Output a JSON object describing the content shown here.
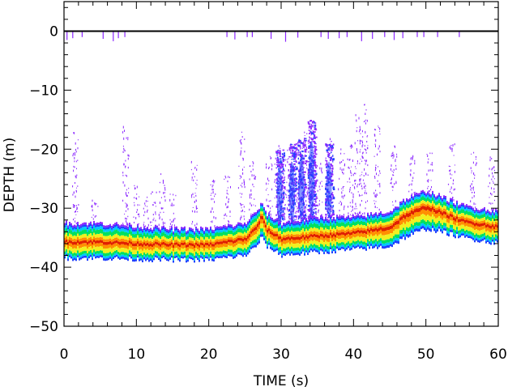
{
  "chart_data": {
    "type": "heatmap",
    "title": "",
    "xlabel": "TIME (s)",
    "ylabel": "DEPTH (m)",
    "xlim": [
      0,
      60
    ],
    "ylim": [
      -50,
      5
    ],
    "x_ticks": [
      0,
      10,
      20,
      30,
      40,
      50,
      60
    ],
    "x_tick_labels": [
      "0",
      "10",
      "20",
      "30",
      "40",
      "50",
      "60"
    ],
    "y_ticks": [
      0,
      -10,
      -20,
      -30,
      -40,
      -50
    ],
    "y_tick_labels": [
      "0",
      "−10",
      "−20",
      "−30",
      "−40",
      "−50"
    ],
    "grid": false,
    "legend": "none",
    "colormap": [
      "#8c28ff",
      "#2040ff",
      "#00c8ff",
      "#00e060",
      "#f0f020",
      "#ff9000",
      "#e02000"
    ],
    "surface_line_depth": 0,
    "bottom_band": {
      "time": [
        0,
        5,
        10,
        15,
        20,
        25,
        26.5,
        27.2,
        28,
        30,
        35,
        40,
        45,
        47,
        50,
        52,
        55,
        60
      ],
      "core_depth": [
        -35.5,
        -35.5,
        -35.8,
        -36,
        -36,
        -35,
        -33,
        -31.2,
        -33.5,
        -35,
        -34.5,
        -34,
        -33,
        -31,
        -29.5,
        -30.5,
        -32,
        -33
      ],
      "top_depth": [
        -32.5,
        -32.5,
        -33,
        -33.5,
        -33.5,
        -32.5,
        -30.5,
        -29.3,
        -31,
        -32.5,
        -31.5,
        -31.5,
        -30.5,
        -28.5,
        -27,
        -28,
        -29.5,
        -30.5
      ],
      "bottom_depth": [
        -38.5,
        -38.5,
        -38.7,
        -38.8,
        -38.8,
        -38,
        -36.5,
        -35,
        -36.5,
        -38,
        -37.5,
        -37,
        -36.5,
        -35,
        -33.5,
        -34,
        -35,
        -36
      ]
    },
    "scatter_columns": [
      {
        "time": 1.5,
        "top_depth": -17
      },
      {
        "time": 4.2,
        "top_depth": -28
      },
      {
        "time": 8.5,
        "top_depth": -16
      },
      {
        "time": 10,
        "top_depth": -26
      },
      {
        "time": 11.2,
        "top_depth": -28
      },
      {
        "time": 12.3,
        "top_depth": -27
      },
      {
        "time": 13.5,
        "top_depth": -24
      },
      {
        "time": 15,
        "top_depth": -27
      },
      {
        "time": 18,
        "top_depth": -22
      },
      {
        "time": 20.5,
        "top_depth": -25
      },
      {
        "time": 22.5,
        "top_depth": -24
      },
      {
        "time": 24.5,
        "top_depth": -17
      },
      {
        "time": 26,
        "top_depth": -22
      },
      {
        "time": 28.3,
        "top_depth": -21
      },
      {
        "time": 29.5,
        "top_depth": -19
      },
      {
        "time": 30.6,
        "top_depth": -20
      },
      {
        "time": 31.7,
        "top_depth": -19
      },
      {
        "time": 32.6,
        "top_depth": -18
      },
      {
        "time": 33.5,
        "top_depth": -17
      },
      {
        "time": 34.3,
        "top_depth": -15
      },
      {
        "time": 35.2,
        "top_depth": -22
      },
      {
        "time": 36.5,
        "top_depth": -18
      },
      {
        "time": 38.3,
        "top_depth": -19
      },
      {
        "time": 39.5,
        "top_depth": -18
      },
      {
        "time": 40.5,
        "top_depth": -14
      },
      {
        "time": 41.5,
        "top_depth": -12
      },
      {
        "time": 43.2,
        "top_depth": -16
      },
      {
        "time": 45.5,
        "top_depth": -19
      },
      {
        "time": 48,
        "top_depth": -21
      },
      {
        "time": 50.5,
        "top_depth": -20
      },
      {
        "time": 53.5,
        "top_depth": -18
      },
      {
        "time": 56.5,
        "top_depth": -20
      },
      {
        "time": 59,
        "top_depth": -21
      }
    ],
    "dense_scatter": [
      {
        "time": 29.8,
        "top_depth": -20
      },
      {
        "time": 31.5,
        "top_depth": -19
      },
      {
        "time": 32.8,
        "top_depth": -18
      },
      {
        "time": 34.2,
        "top_depth": -15
      },
      {
        "time": 36.6,
        "top_depth": -19
      }
    ],
    "surface_bursts": [
      {
        "time": 0.4,
        "length": 1.5
      },
      {
        "time": 1.2,
        "length": 1.2
      },
      {
        "time": 2.5,
        "length": 1.0
      },
      {
        "time": 5.4,
        "length": 1.3
      },
      {
        "time": 6.8,
        "length": 1.7
      },
      {
        "time": 7.5,
        "length": 1.2
      },
      {
        "time": 8.4,
        "length": 1.0
      },
      {
        "time": 22.5,
        "length": 1.0
      },
      {
        "time": 23.6,
        "length": 1.4
      },
      {
        "time": 25.3,
        "length": 1.0
      },
      {
        "time": 26.0,
        "length": 1.0
      },
      {
        "time": 28.6,
        "length": 1.3
      },
      {
        "time": 30.6,
        "length": 1.8
      },
      {
        "time": 32.3,
        "length": 1.1
      },
      {
        "time": 35.5,
        "length": 1.0
      },
      {
        "time": 36.5,
        "length": 1.3
      },
      {
        "time": 38.0,
        "length": 1.2
      },
      {
        "time": 39.1,
        "length": 1.0
      },
      {
        "time": 41.1,
        "length": 1.7
      },
      {
        "time": 42.6,
        "length": 1.3
      },
      {
        "time": 44.3,
        "length": 1.0
      },
      {
        "time": 45.6,
        "length": 1.5
      },
      {
        "time": 46.8,
        "length": 1.2
      },
      {
        "time": 48.8,
        "length": 1.0
      },
      {
        "time": 49.7,
        "length": 1.0
      },
      {
        "time": 51.6,
        "length": 1.0
      },
      {
        "time": 54.6,
        "length": 1.0
      }
    ]
  }
}
